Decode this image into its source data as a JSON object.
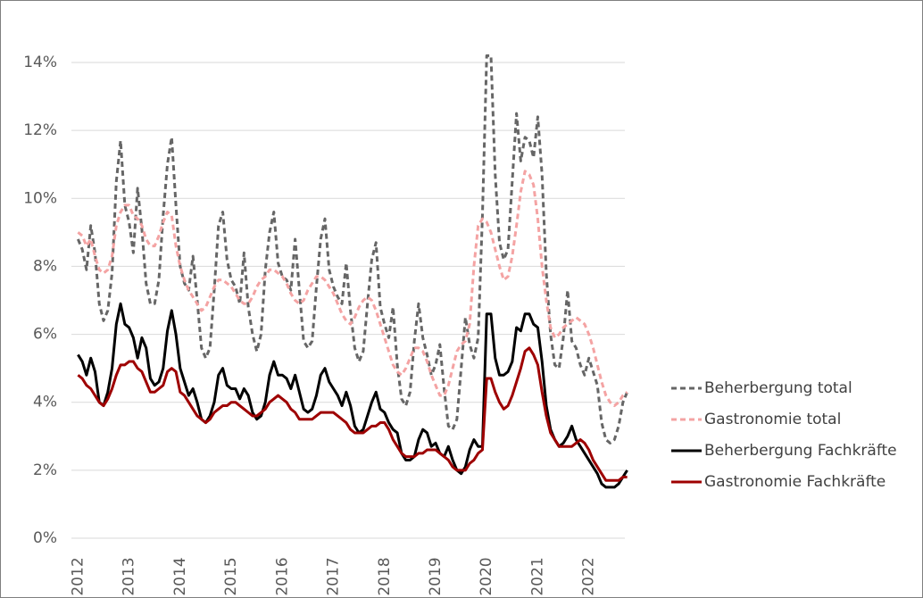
{
  "chart_data": {
    "type": "line",
    "categories": [
      "2012",
      null,
      null,
      null,
      null,
      null,
      null,
      null,
      null,
      null,
      null,
      null,
      "2013",
      null,
      null,
      null,
      null,
      null,
      null,
      null,
      null,
      null,
      null,
      null,
      "2014",
      null,
      null,
      null,
      null,
      null,
      null,
      null,
      null,
      null,
      null,
      null,
      "2015",
      null,
      null,
      null,
      null,
      null,
      null,
      null,
      null,
      null,
      null,
      null,
      "2016",
      null,
      null,
      null,
      null,
      null,
      null,
      null,
      null,
      null,
      null,
      null,
      "2017",
      null,
      null,
      null,
      null,
      null,
      null,
      null,
      null,
      null,
      null,
      null,
      "2018",
      null,
      null,
      null,
      null,
      null,
      null,
      null,
      null,
      null,
      null,
      null,
      "2019",
      null,
      null,
      null,
      null,
      null,
      null,
      null,
      null,
      null,
      null,
      null,
      "2020",
      null,
      null,
      null,
      null,
      null,
      null,
      null,
      null,
      null,
      null,
      null,
      "2021",
      null,
      null,
      null,
      null,
      null,
      null,
      null,
      null,
      null,
      null,
      null,
      "2022",
      null,
      null,
      null,
      null,
      null,
      null,
      null,
      null,
      null
    ],
    "ylim": [
      0,
      14
    ],
    "yticks": [
      {
        "value": 0,
        "label": "0%"
      },
      {
        "value": 2,
        "label": "2%"
      },
      {
        "value": 4,
        "label": "4%"
      },
      {
        "value": 6,
        "label": "6%"
      },
      {
        "value": 8,
        "label": "8%"
      },
      {
        "value": 10,
        "label": "10%"
      },
      {
        "value": 12,
        "label": "12%"
      },
      {
        "value": 14,
        "label": "14%"
      }
    ],
    "grid": true,
    "legend": "right",
    "series": [
      {
        "name": "Beherbergung total",
        "color": "#666666",
        "line_style": "dashed",
        "values": [
          8.8,
          8.5,
          7.9,
          9.2,
          8.4,
          6.9,
          6.4,
          6.7,
          7.8,
          10.5,
          11.7,
          9.8,
          9.3,
          8.4,
          10.3,
          9.1,
          7.5,
          6.9,
          6.9,
          7.6,
          9.5,
          11.0,
          11.8,
          9.8,
          8.0,
          7.5,
          7.3,
          8.3,
          7.0,
          5.6,
          5.3,
          5.6,
          7.3,
          9.2,
          9.6,
          8.2,
          7.6,
          7.4,
          6.9,
          8.4,
          6.8,
          6.0,
          5.5,
          6.0,
          7.9,
          9.0,
          9.6,
          8.1,
          7.7,
          7.6,
          7.3,
          8.8,
          7.3,
          5.8,
          5.6,
          5.8,
          7.4,
          8.8,
          9.4,
          7.9,
          7.4,
          7.1,
          6.9,
          8.1,
          6.7,
          5.6,
          5.2,
          5.5,
          6.9,
          8.2,
          8.7,
          6.8,
          6.3,
          5.9,
          6.8,
          5.1,
          4.1,
          3.9,
          4.3,
          5.8,
          6.9,
          5.9,
          5.4,
          4.8,
          5.1,
          5.7,
          4.4,
          3.3,
          3.2,
          3.5,
          5.0,
          6.5,
          5.7,
          5.3,
          5.9,
          9.5,
          14.2,
          14.2,
          10.7,
          8.7,
          8.2,
          8.5,
          10.5,
          12.5,
          11.1,
          11.8,
          11.7,
          11.2,
          12.4,
          10.7,
          7.8,
          6.0,
          5.1,
          5.0,
          5.9,
          7.3,
          5.8,
          5.6,
          5.1,
          4.8,
          5.3,
          4.9,
          4.5,
          3.4,
          2.9,
          2.8,
          2.9,
          3.3,
          4.0,
          4.3
        ]
      },
      {
        "name": "Gastronomie total",
        "color": "#f4a3a3",
        "line_style": "dashed",
        "values": [
          9.0,
          8.9,
          8.6,
          8.8,
          8.3,
          7.9,
          7.8,
          7.9,
          8.3,
          9.2,
          9.6,
          9.8,
          9.8,
          9.5,
          9.4,
          9.2,
          8.8,
          8.6,
          8.6,
          8.9,
          9.3,
          9.6,
          9.5,
          8.6,
          8.0,
          7.6,
          7.3,
          7.1,
          6.9,
          6.7,
          6.8,
          7.1,
          7.4,
          7.6,
          7.6,
          7.5,
          7.4,
          7.2,
          7.0,
          6.9,
          6.9,
          7.1,
          7.4,
          7.6,
          7.7,
          7.9,
          7.9,
          7.8,
          7.7,
          7.5,
          7.2,
          7.0,
          6.9,
          7.0,
          7.3,
          7.5,
          7.7,
          7.7,
          7.6,
          7.4,
          7.2,
          6.9,
          6.6,
          6.4,
          6.3,
          6.5,
          6.8,
          7.0,
          7.1,
          7.0,
          6.7,
          6.3,
          5.9,
          5.5,
          5.1,
          4.9,
          4.8,
          5.0,
          5.3,
          5.6,
          5.6,
          5.5,
          5.2,
          4.8,
          4.5,
          4.2,
          4.2,
          4.5,
          5.0,
          5.5,
          5.7,
          5.8,
          6.3,
          8.0,
          9.2,
          9.4,
          9.3,
          9.0,
          8.5,
          8.0,
          7.6,
          7.7,
          8.3,
          9.2,
          10.2,
          10.8,
          10.7,
          10.4,
          9.4,
          8.0,
          7.0,
          6.2,
          5.9,
          6.0,
          6.2,
          6.3,
          6.4,
          6.5,
          6.4,
          6.3,
          6.0,
          5.6,
          5.1,
          4.6,
          4.2,
          4.0,
          3.9,
          4.0,
          4.2,
          4.3
        ]
      },
      {
        "name": "Beherbergung Fachkräfte",
        "color": "#000000",
        "line_style": "solid",
        "values": [
          5.4,
          5.2,
          4.8,
          5.3,
          4.9,
          4.0,
          3.9,
          4.3,
          5.0,
          6.3,
          6.9,
          6.3,
          6.2,
          5.9,
          5.3,
          5.9,
          5.6,
          4.7,
          4.5,
          4.6,
          5.0,
          6.1,
          6.7,
          6.0,
          5.0,
          4.6,
          4.2,
          4.4,
          4.0,
          3.5,
          3.4,
          3.6,
          4.0,
          4.8,
          5.0,
          4.5,
          4.4,
          4.4,
          4.1,
          4.4,
          4.2,
          3.7,
          3.5,
          3.6,
          4.0,
          4.8,
          5.2,
          4.8,
          4.8,
          4.7,
          4.4,
          4.8,
          4.3,
          3.8,
          3.7,
          3.8,
          4.2,
          4.8,
          5.0,
          4.6,
          4.4,
          4.2,
          3.9,
          4.3,
          3.9,
          3.3,
          3.1,
          3.2,
          3.6,
          4.0,
          4.3,
          3.8,
          3.7,
          3.4,
          3.2,
          3.1,
          2.5,
          2.3,
          2.3,
          2.4,
          2.9,
          3.2,
          3.1,
          2.7,
          2.8,
          2.5,
          2.4,
          2.7,
          2.3,
          2.0,
          1.9,
          2.1,
          2.6,
          2.9,
          2.7,
          2.7,
          6.6,
          6.6,
          5.3,
          4.8,
          4.8,
          4.9,
          5.2,
          6.2,
          6.1,
          6.6,
          6.6,
          6.3,
          6.2,
          5.2,
          3.9,
          3.2,
          2.9,
          2.7,
          2.8,
          3.0,
          3.3,
          2.9,
          2.7,
          2.5,
          2.3,
          2.1,
          1.9,
          1.6,
          1.5,
          1.5,
          1.5,
          1.6,
          1.8,
          2.0
        ]
      },
      {
        "name": "Gastronomie Fachkräfte",
        "color": "#9e0000",
        "line_style": "solid",
        "values": [
          4.8,
          4.7,
          4.5,
          4.4,
          4.2,
          4.0,
          3.9,
          4.1,
          4.4,
          4.8,
          5.1,
          5.1,
          5.2,
          5.2,
          5.0,
          4.9,
          4.6,
          4.3,
          4.3,
          4.4,
          4.5,
          4.9,
          5.0,
          4.9,
          4.3,
          4.2,
          4.0,
          3.8,
          3.6,
          3.5,
          3.4,
          3.5,
          3.7,
          3.8,
          3.9,
          3.9,
          4.0,
          4.0,
          3.9,
          3.8,
          3.7,
          3.6,
          3.6,
          3.7,
          3.8,
          4.0,
          4.1,
          4.2,
          4.1,
          4.0,
          3.8,
          3.7,
          3.5,
          3.5,
          3.5,
          3.5,
          3.6,
          3.7,
          3.7,
          3.7,
          3.7,
          3.6,
          3.5,
          3.4,
          3.2,
          3.1,
          3.1,
          3.1,
          3.2,
          3.3,
          3.3,
          3.4,
          3.4,
          3.2,
          2.9,
          2.7,
          2.5,
          2.4,
          2.4,
          2.4,
          2.5,
          2.5,
          2.6,
          2.6,
          2.6,
          2.5,
          2.4,
          2.3,
          2.1,
          2.0,
          2.0,
          2.0,
          2.2,
          2.3,
          2.5,
          2.6,
          4.7,
          4.7,
          4.3,
          4.0,
          3.8,
          3.9,
          4.2,
          4.6,
          5.0,
          5.5,
          5.6,
          5.4,
          5.1,
          4.3,
          3.6,
          3.1,
          2.9,
          2.7,
          2.7,
          2.7,
          2.7,
          2.8,
          2.9,
          2.8,
          2.6,
          2.3,
          2.1,
          1.9,
          1.7,
          1.7,
          1.7,
          1.7,
          1.8,
          1.8
        ]
      }
    ]
  }
}
